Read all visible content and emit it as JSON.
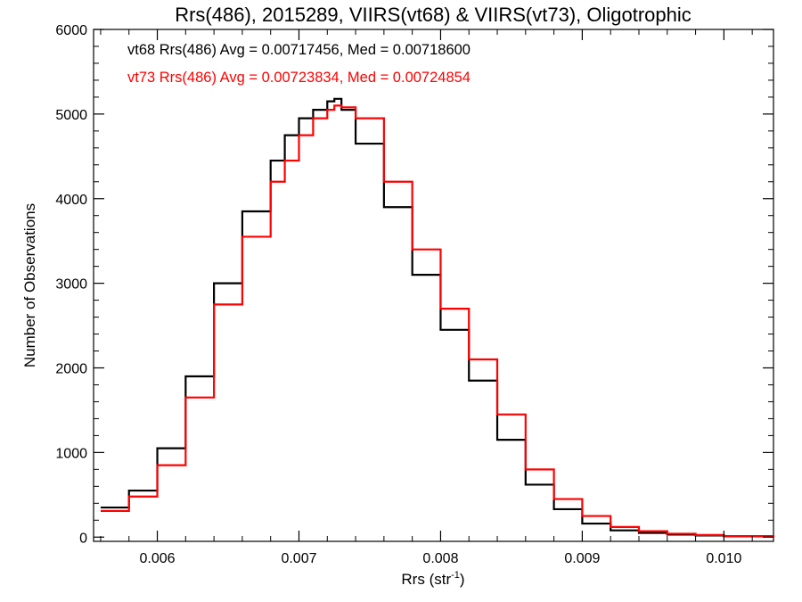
{
  "chart_data": {
    "type": "line",
    "title": "Rrs(486), 2015289, VIIRS(vt68) & VIIRS(vt73), Oligotrophic",
    "xlabel_base": "Rrs (str",
    "xlabel_sup": "-1",
    "xlabel_close": ")",
    "ylabel": "Number of Observations",
    "xlim": [
      0.00555,
      0.01035
    ],
    "ylim": [
      -50,
      6000
    ],
    "xticks": [
      0.006,
      0.007,
      0.008,
      0.009,
      0.01
    ],
    "xtick_labels": [
      "0.006",
      "0.007",
      "0.008",
      "0.009",
      "0.010"
    ],
    "yticks": [
      0,
      1000,
      2000,
      3000,
      4000,
      5000,
      6000
    ],
    "ytick_labels": [
      "0",
      "1000",
      "2000",
      "3000",
      "4000",
      "5000",
      "6000"
    ],
    "grid": false,
    "series": [
      {
        "name": "vt68",
        "color": "#000000",
        "stats_label": "vt68 Rrs(486) Avg = 0.00717456, Med = 0.00718600",
        "x": [
          0.0056,
          0.0058,
          0.006,
          0.0062,
          0.0064,
          0.0066,
          0.0068,
          0.0069,
          0.007,
          0.0071,
          0.0072,
          0.00725,
          0.0073,
          0.0074,
          0.0076,
          0.0078,
          0.008,
          0.0082,
          0.0084,
          0.0086,
          0.0088,
          0.009,
          0.0092,
          0.0094,
          0.0096,
          0.0098,
          0.01,
          0.01035
        ],
        "y": [
          350,
          550,
          1050,
          1900,
          3000,
          3850,
          4450,
          4750,
          4950,
          5050,
          5150,
          5180,
          5050,
          4650,
          3900,
          3100,
          2450,
          1850,
          1150,
          620,
          330,
          160,
          80,
          50,
          30,
          20,
          10,
          5
        ]
      },
      {
        "name": "vt73",
        "color": "#ff0000",
        "stats_label": "vt73 Rrs(486) Avg = 0.00723834, Med = 0.00724854",
        "x": [
          0.0056,
          0.0058,
          0.006,
          0.0062,
          0.0064,
          0.0066,
          0.0068,
          0.0069,
          0.007,
          0.0071,
          0.0072,
          0.00725,
          0.0073,
          0.0074,
          0.0076,
          0.0078,
          0.008,
          0.0082,
          0.0084,
          0.0086,
          0.0088,
          0.009,
          0.0092,
          0.0094,
          0.0096,
          0.0098,
          0.01,
          0.01035
        ],
        "y": [
          310,
          480,
          850,
          1650,
          2750,
          3550,
          4200,
          4450,
          4750,
          4950,
          5050,
          5100,
          5080,
          4950,
          4200,
          3400,
          2700,
          2100,
          1450,
          800,
          450,
          250,
          120,
          70,
          40,
          25,
          12,
          5
        ]
      }
    ]
  }
}
